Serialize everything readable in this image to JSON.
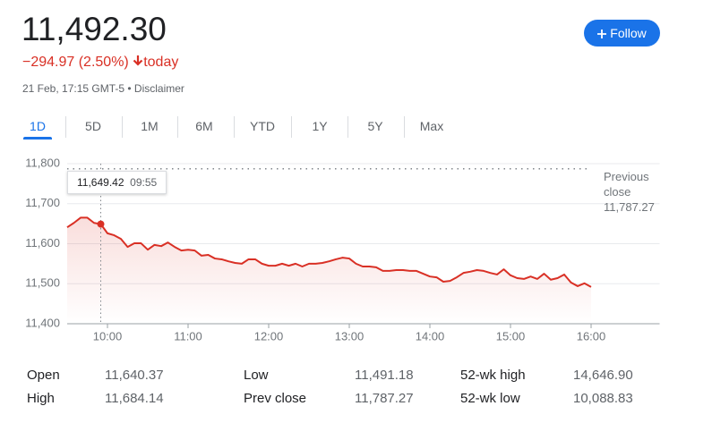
{
  "header": {
    "price": "11,492.30",
    "change": "−294.97 (2.50%)",
    "change_period": "today",
    "timestamp": "21 Feb, 17:15 GMT-5 • Disclaimer",
    "follow_button": "Follow"
  },
  "tabs": [
    "1D",
    "5D",
    "1M",
    "6M",
    "YTD",
    "1Y",
    "5Y",
    "Max"
  ],
  "selected_tab": 0,
  "chart_data": {
    "type": "line",
    "color": "#d93025",
    "grid": true,
    "x": [
      570,
      575,
      580,
      585,
      590,
      595,
      600,
      605,
      610,
      615,
      620,
      625,
      630,
      635,
      640,
      645,
      650,
      655,
      660,
      665,
      670,
      675,
      680,
      685,
      690,
      695,
      700,
      705,
      710,
      715,
      720,
      725,
      730,
      735,
      740,
      745,
      750,
      755,
      760,
      765,
      770,
      775,
      780,
      785,
      790,
      795,
      800,
      805,
      810,
      815,
      820,
      825,
      830,
      835,
      840,
      845,
      850,
      855,
      860,
      865,
      870,
      875,
      880,
      885,
      890,
      895,
      900,
      905,
      910,
      915,
      920,
      925,
      930,
      935,
      940,
      945,
      950,
      955,
      960
    ],
    "values": [
      11641,
      11652,
      11665,
      11665,
      11652,
      11649,
      11626,
      11621,
      11612,
      11592,
      11601,
      11601,
      11585,
      11597,
      11594,
      11603,
      11592,
      11583,
      11585,
      11583,
      11570,
      11572,
      11563,
      11561,
      11556,
      11552,
      11550,
      11561,
      11561,
      11550,
      11545,
      11545,
      11550,
      11545,
      11550,
      11543,
      11550,
      11550,
      11552,
      11556,
      11561,
      11565,
      11563,
      11550,
      11543,
      11543,
      11541,
      11532,
      11532,
      11534,
      11534,
      11532,
      11532,
      11525,
      11518,
      11516,
      11505,
      11507,
      11516,
      11527,
      11530,
      11534,
      11532,
      11527,
      11523,
      11536,
      11521,
      11514,
      11512,
      11518,
      11512,
      11525,
      11510,
      11514,
      11523,
      11503,
      11494,
      11501,
      11492
    ],
    "xlim": [
      570,
      1011
    ],
    "ylim": [
      11400,
      11800
    ],
    "xticks": [
      {
        "value": 600,
        "label": "10:00"
      },
      {
        "value": 660,
        "label": "11:00"
      },
      {
        "value": 720,
        "label": "12:00"
      },
      {
        "value": 780,
        "label": "13:00"
      },
      {
        "value": 840,
        "label": "14:00"
      },
      {
        "value": 900,
        "label": "15:00"
      },
      {
        "value": 960,
        "label": "16:00"
      }
    ],
    "yticks": [
      {
        "value": 11400,
        "label": "11,400"
      },
      {
        "value": 11500,
        "label": "11,500"
      },
      {
        "value": 11600,
        "label": "11,600"
      },
      {
        "value": 11700,
        "label": "11,700"
      },
      {
        "value": 11800,
        "label": "11,800"
      }
    ],
    "previous_close": {
      "label": "Previous close",
      "value": 11787.27,
      "value_label": "11,787.27"
    },
    "tooltip": {
      "value": "11,649.42",
      "time": "09:55",
      "index": 5
    }
  },
  "stats": [
    [
      "Open",
      "11,640.37",
      "Low",
      "11,491.18",
      "52-wk high",
      "14,646.90"
    ],
    [
      "High",
      "11,684.14",
      "Prev close",
      "11,787.27",
      "52-wk low",
      "10,088.83"
    ]
  ]
}
